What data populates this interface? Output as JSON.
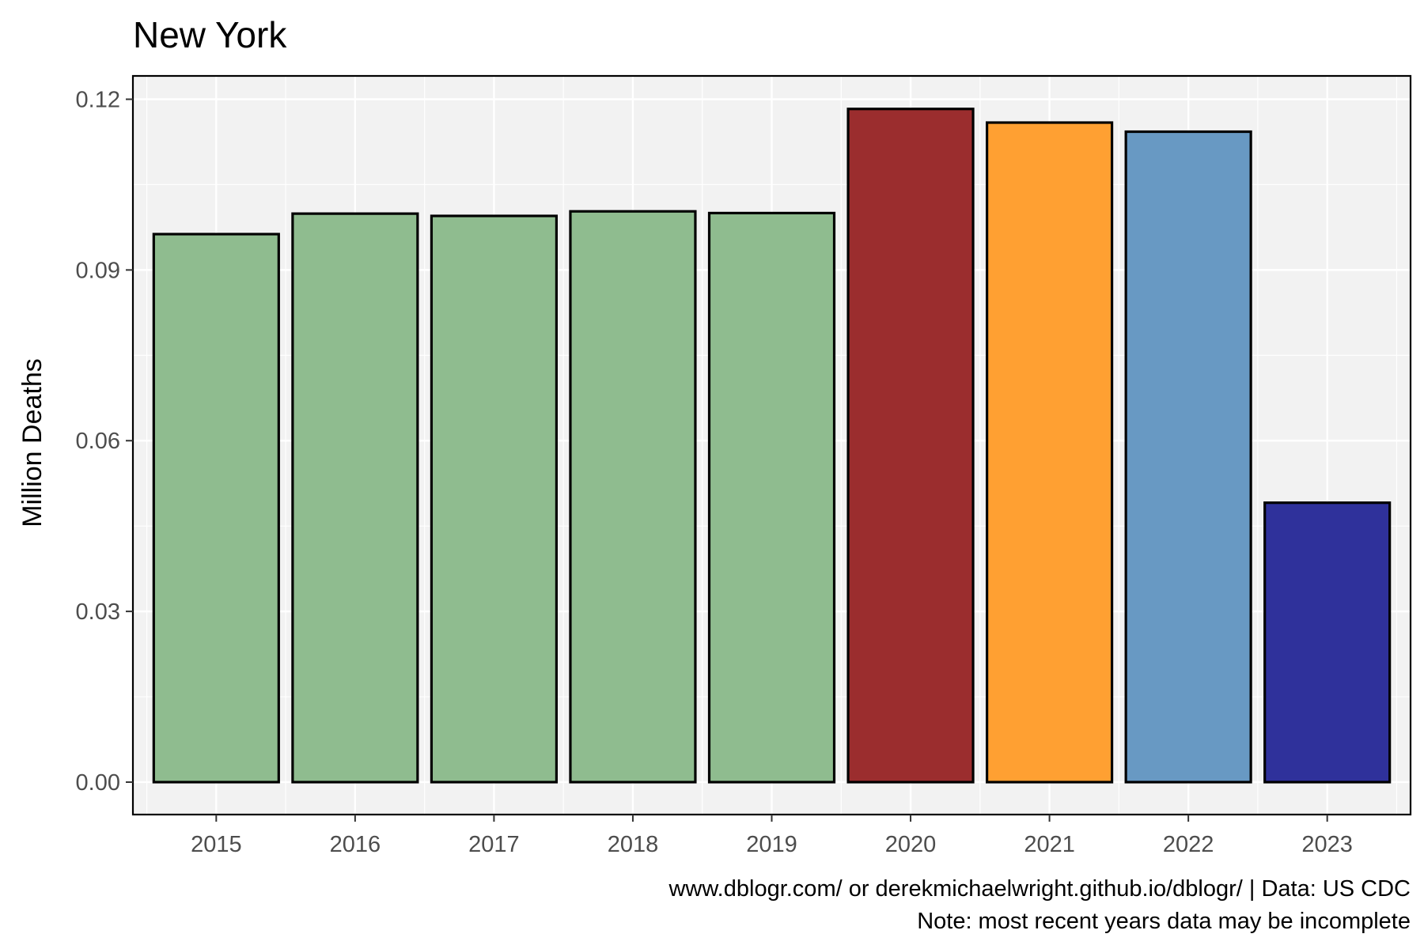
{
  "chart_data": {
    "type": "bar",
    "title": "New York",
    "xlabel": "",
    "ylabel": "Million Deaths",
    "categories": [
      "2015",
      "2016",
      "2017",
      "2018",
      "2019",
      "2020",
      "2021",
      "2022",
      "2023"
    ],
    "values": [
      0.0963,
      0.0999,
      0.0995,
      0.1003,
      0.1,
      0.1183,
      0.1159,
      0.1143,
      0.0491
    ],
    "bar_colors": [
      "#8fbc8f",
      "#8fbc8f",
      "#8fbc8f",
      "#8fbc8f",
      "#8fbc8f",
      "#9b2d2e",
      "#ffa032",
      "#6899c3",
      "#2f319b"
    ],
    "ylim": [
      -0.0057,
      0.1241
    ],
    "yticks": [
      "0.00",
      "0.03",
      "0.06",
      "0.09",
      "0.12"
    ],
    "grid": true,
    "panel_background": "#f2f2f2",
    "caption_lines": [
      "www.dblogr.com/ or derekmichaelwright.github.io/dblogr/ | Data: US CDC",
      "Note: most recent years data may be incomplete"
    ]
  }
}
